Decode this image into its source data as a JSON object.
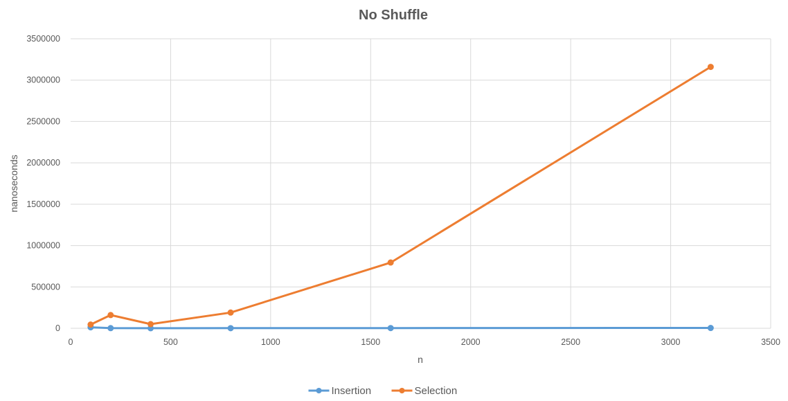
{
  "chart_data": {
    "type": "line",
    "title": "No Shuffle",
    "xlabel": "n",
    "ylabel": "nanoseconds",
    "xlim": [
      0,
      3500
    ],
    "ylim": [
      0,
      3500000
    ],
    "x_ticks": [
      "0",
      "500",
      "1000",
      "1500",
      "2000",
      "2500",
      "3000",
      "3500"
    ],
    "y_ticks": [
      "0",
      "500000",
      "1000000",
      "1500000",
      "2000000",
      "2500000",
      "3000000",
      "3500000"
    ],
    "grid": true,
    "legend_position": "bottom",
    "series": [
      {
        "name": "Insertion",
        "color": "#5B9BD5",
        "x": [
          100,
          200,
          400,
          800,
          1600,
          3200
        ],
        "y": [
          12000,
          2000,
          1000,
          1500,
          2500,
          4000
        ]
      },
      {
        "name": "Selection",
        "color": "#ED7D31",
        "x": [
          100,
          200,
          400,
          800,
          1600,
          3200
        ],
        "y": [
          45000,
          160000,
          50000,
          190000,
          795000,
          3160000
        ]
      }
    ]
  }
}
